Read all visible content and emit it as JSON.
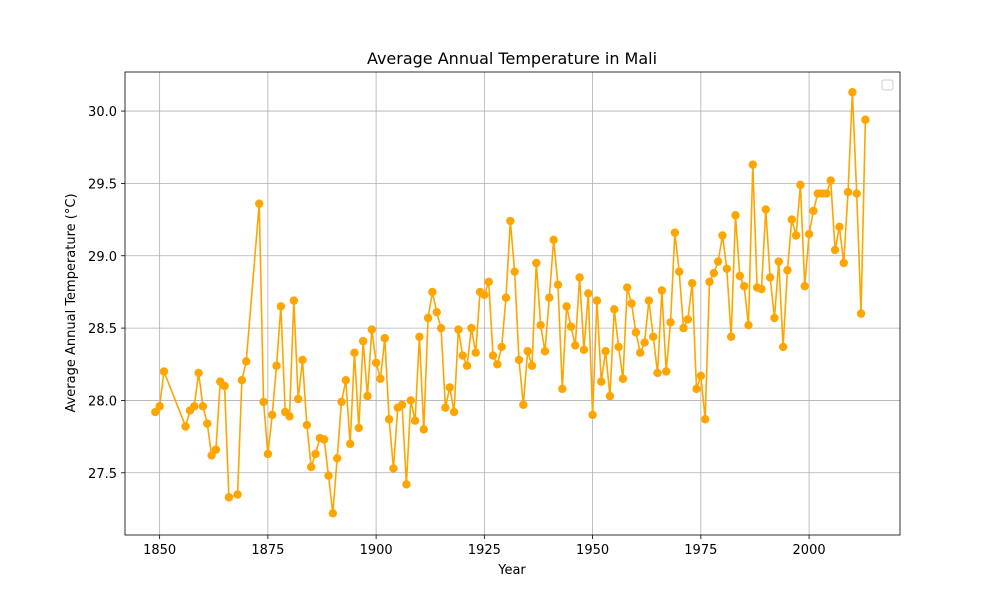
{
  "chart_data": {
    "type": "line",
    "title": "Average Annual Temperature in Mali",
    "xlabel": "Year",
    "ylabel": "Average Annual Temperature (°C)",
    "xlim": [
      1842,
      2021
    ],
    "ylim": [
      27.07,
      30.27
    ],
    "xticks": [
      1850,
      1875,
      1900,
      1925,
      1950,
      1975,
      2000
    ],
    "yticks": [
      27.5,
      28.0,
      28.5,
      29.0,
      29.5,
      30.0
    ],
    "ytick_labels": [
      "27.5",
      "28.0",
      "28.5",
      "29.0",
      "29.5",
      "30.0"
    ],
    "grid": true,
    "legend": "top-right (empty)",
    "series": [
      {
        "color": "#ffa500",
        "marker": "circle",
        "points": [
          [
            1849,
            27.92
          ],
          [
            1850,
            27.96
          ],
          [
            1851,
            28.2
          ],
          [
            1856,
            27.82
          ],
          [
            1857,
            27.93
          ],
          [
            1858,
            27.96
          ],
          [
            1859,
            28.19
          ],
          [
            1860,
            27.96
          ],
          [
            1861,
            27.84
          ],
          [
            1862,
            27.62
          ],
          [
            1863,
            27.66
          ],
          [
            1864,
            28.13
          ],
          [
            1865,
            28.1
          ],
          [
            1866,
            27.33
          ],
          [
            1868,
            27.35
          ],
          [
            1869,
            28.14
          ],
          [
            1870,
            28.27
          ],
          [
            1873,
            29.36
          ],
          [
            1874,
            27.99
          ],
          [
            1875,
            27.63
          ],
          [
            1876,
            27.9
          ],
          [
            1877,
            28.24
          ],
          [
            1878,
            28.65
          ],
          [
            1879,
            27.92
          ],
          [
            1880,
            27.89
          ],
          [
            1881,
            28.69
          ],
          [
            1882,
            28.01
          ],
          [
            1883,
            28.28
          ],
          [
            1884,
            27.83
          ],
          [
            1885,
            27.54
          ],
          [
            1886,
            27.63
          ],
          [
            1887,
            27.74
          ],
          [
            1888,
            27.73
          ],
          [
            1889,
            27.48
          ],
          [
            1890,
            27.22
          ],
          [
            1891,
            27.6
          ],
          [
            1892,
            27.99
          ],
          [
            1893,
            28.14
          ],
          [
            1894,
            27.7
          ],
          [
            1895,
            28.33
          ],
          [
            1896,
            27.81
          ],
          [
            1897,
            28.41
          ],
          [
            1898,
            28.03
          ],
          [
            1899,
            28.49
          ],
          [
            1900,
            28.26
          ],
          [
            1901,
            28.15
          ],
          [
            1902,
            28.43
          ],
          [
            1903,
            27.87
          ],
          [
            1904,
            27.53
          ],
          [
            1905,
            27.95
          ],
          [
            1906,
            27.97
          ],
          [
            1907,
            27.42
          ],
          [
            1908,
            28.0
          ],
          [
            1909,
            27.86
          ],
          [
            1910,
            28.44
          ],
          [
            1911,
            27.8
          ],
          [
            1912,
            28.57
          ],
          [
            1913,
            28.75
          ],
          [
            1914,
            28.61
          ],
          [
            1915,
            28.5
          ],
          [
            1916,
            27.95
          ],
          [
            1917,
            28.09
          ],
          [
            1918,
            27.92
          ],
          [
            1919,
            28.49
          ],
          [
            1920,
            28.31
          ],
          [
            1921,
            28.24
          ],
          [
            1922,
            28.5
          ],
          [
            1923,
            28.33
          ],
          [
            1924,
            28.75
          ],
          [
            1925,
            28.73
          ],
          [
            1926,
            28.82
          ],
          [
            1927,
            28.31
          ],
          [
            1928,
            28.25
          ],
          [
            1929,
            28.37
          ],
          [
            1930,
            28.71
          ],
          [
            1931,
            29.24
          ],
          [
            1932,
            28.89
          ],
          [
            1933,
            28.28
          ],
          [
            1934,
            27.97
          ],
          [
            1935,
            28.34
          ],
          [
            1936,
            28.24
          ],
          [
            1937,
            28.95
          ],
          [
            1938,
            28.52
          ],
          [
            1939,
            28.34
          ],
          [
            1940,
            28.71
          ],
          [
            1941,
            29.11
          ],
          [
            1942,
            28.8
          ],
          [
            1943,
            28.08
          ],
          [
            1944,
            28.65
          ],
          [
            1945,
            28.51
          ],
          [
            1946,
            28.38
          ],
          [
            1947,
            28.85
          ],
          [
            1948,
            28.35
          ],
          [
            1949,
            28.74
          ],
          [
            1950,
            27.9
          ],
          [
            1951,
            28.69
          ],
          [
            1952,
            28.13
          ],
          [
            1953,
            28.34
          ],
          [
            1954,
            28.03
          ],
          [
            1955,
            28.63
          ],
          [
            1956,
            28.37
          ],
          [
            1957,
            28.15
          ],
          [
            1958,
            28.78
          ],
          [
            1959,
            28.67
          ],
          [
            1960,
            28.47
          ],
          [
            1961,
            28.33
          ],
          [
            1962,
            28.4
          ],
          [
            1963,
            28.69
          ],
          [
            1964,
            28.44
          ],
          [
            1965,
            28.19
          ],
          [
            1966,
            28.76
          ],
          [
            1967,
            28.2
          ],
          [
            1968,
            28.54
          ],
          [
            1969,
            29.16
          ],
          [
            1970,
            28.89
          ],
          [
            1971,
            28.5
          ],
          [
            1972,
            28.56
          ],
          [
            1973,
            28.81
          ],
          [
            1974,
            28.08
          ],
          [
            1975,
            28.17
          ],
          [
            1976,
            27.87
          ],
          [
            1977,
            28.82
          ],
          [
            1978,
            28.88
          ],
          [
            1979,
            28.96
          ],
          [
            1980,
            29.14
          ],
          [
            1981,
            28.91
          ],
          [
            1982,
            28.44
          ],
          [
            1983,
            29.28
          ],
          [
            1984,
            28.86
          ],
          [
            1985,
            28.79
          ],
          [
            1986,
            28.52
          ],
          [
            1987,
            29.63
          ],
          [
            1988,
            28.78
          ],
          [
            1989,
            28.77
          ],
          [
            1990,
            29.32
          ],
          [
            1991,
            28.85
          ],
          [
            1992,
            28.57
          ],
          [
            1993,
            28.96
          ],
          [
            1994,
            28.37
          ],
          [
            1995,
            28.9
          ],
          [
            1996,
            29.25
          ],
          [
            1997,
            29.14
          ],
          [
            1998,
            29.49
          ],
          [
            1999,
            28.79
          ],
          [
            2000,
            29.15
          ],
          [
            2001,
            29.31
          ],
          [
            2002,
            29.43
          ],
          [
            2003,
            29.43
          ],
          [
            2004,
            29.43
          ],
          [
            2005,
            29.52
          ],
          [
            2006,
            29.04
          ],
          [
            2007,
            29.2
          ],
          [
            2008,
            28.95
          ],
          [
            2009,
            29.44
          ],
          [
            2010,
            30.13
          ],
          [
            2011,
            29.43
          ],
          [
            2012,
            28.6
          ],
          [
            2013,
            29.94
          ]
        ]
      }
    ]
  }
}
